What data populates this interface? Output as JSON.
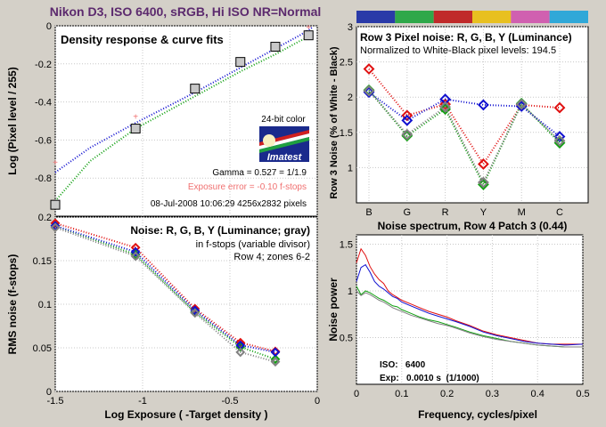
{
  "main_title": "Nikon D3, ISO 6400, sRGB, Hi ISO NR=Normal",
  "colors": {
    "title": "#5c2a6e",
    "background": "#d4d0c8",
    "plot_bg": "#ffffff",
    "grid": "#c8c8c8",
    "red": "#e01010",
    "green": "#10a010",
    "blue": "#1010d0",
    "gray": "#808080",
    "exposure_error": "#f07070",
    "patch_strip": [
      "#2a3aa8",
      "#2fa84a",
      "#c02a2a",
      "#e8c020",
      "#d060b0",
      "#30a8d8"
    ]
  },
  "chart_data": [
    {
      "id": "density",
      "type": "scatter",
      "title": "Density response & curve fits",
      "ylabel": "Log (Pixel level / 255)",
      "xlim": [
        -1.5,
        0
      ],
      "ylim": [
        -1.0,
        0
      ],
      "xticks": [],
      "yticks": [
        {
          "v": 0,
          "label": "0"
        },
        {
          "v": -0.2,
          "label": "-0.2"
        },
        {
          "v": -0.4,
          "label": "-0.4"
        },
        {
          "v": -0.6,
          "label": "-0.6"
        },
        {
          "v": -0.8,
          "label": "-0.8"
        }
      ],
      "points": [
        {
          "x": -1.5,
          "y": -0.94
        },
        {
          "x": -1.04,
          "y": -0.54
        },
        {
          "x": -0.7,
          "y": -0.33
        },
        {
          "x": -0.44,
          "y": -0.19
        },
        {
          "x": -0.24,
          "y": -0.11
        },
        {
          "x": -0.05,
          "y": -0.05
        }
      ],
      "ref_points": [
        {
          "x": -1.5,
          "y": -0.72
        },
        {
          "x": -1.04,
          "y": -0.48
        },
        {
          "x": -0.05,
          "y": -0.01
        }
      ],
      "blue_fit": {
        "x": [
          -1.5,
          -1.3,
          -1.04,
          -0.7,
          -0.44,
          -0.24,
          -0.1,
          -0.03
        ],
        "y": [
          -0.77,
          -0.64,
          -0.51,
          -0.35,
          -0.22,
          -0.12,
          -0.05,
          -0.01
        ]
      },
      "green_fit": {
        "x": [
          -1.5,
          -1.3,
          -1.04,
          -0.7,
          -0.44,
          -0.24,
          -0.1,
          -0.03
        ],
        "y": [
          -0.92,
          -0.71,
          -0.54,
          -0.37,
          -0.24,
          -0.15,
          -0.08,
          -0.05
        ]
      },
      "annotations": {
        "color_badge": "24-bit color",
        "logo": "Imatest",
        "gamma": "Gamma = 0.527 = 1/1.9",
        "exposure_error": "Exposure error = -0.10 f-stops",
        "date_info": "08-Jul-2008 10:06:29   4256x2832 pixels"
      }
    },
    {
      "id": "rms_noise",
      "type": "line",
      "title": "Noise: R, G, B, Y (Luminance; gray)",
      "subtitle1": "in f-stops (variable divisor)",
      "subtitle2": "Row 4; zones 6-2",
      "xlabel": "Log Exposure ( -Target density )",
      "ylabel": "RMS noise (f-stops)",
      "xlim": [
        -1.5,
        0
      ],
      "ylim": [
        0,
        0.2
      ],
      "xticks": [
        {
          "v": -1.5,
          "label": "-1.5"
        },
        {
          "v": -1,
          "label": "-1"
        },
        {
          "v": -0.5,
          "label": "-0.5"
        },
        {
          "v": 0,
          "label": "0"
        }
      ],
      "yticks": [
        {
          "v": 0,
          "label": "0"
        },
        {
          "v": 0.05,
          "label": "0.05"
        },
        {
          "v": 0.1,
          "label": "0.1"
        },
        {
          "v": 0.15,
          "label": "0.15"
        },
        {
          "v": 0.2,
          "label": "0.2"
        }
      ],
      "x": [
        -1.5,
        -1.04,
        -0.7,
        -0.44,
        -0.24
      ],
      "series": [
        {
          "name": "R",
          "color": "#e01010",
          "values": [
            0.193,
            0.165,
            0.095,
            0.056,
            0.046
          ]
        },
        {
          "name": "G",
          "color": "#10a010",
          "values": [
            0.19,
            0.157,
            0.091,
            0.051,
            0.037
          ]
        },
        {
          "name": "B",
          "color": "#1010d0",
          "values": [
            0.19,
            0.16,
            0.093,
            0.053,
            0.045
          ]
        },
        {
          "name": "Y",
          "color": "#808080",
          "values": [
            0.188,
            0.155,
            0.09,
            0.045,
            0.034
          ]
        }
      ]
    },
    {
      "id": "row3_noise",
      "type": "line",
      "title": "Row 3 Pixel noise: R, G, B, Y (Luminance)",
      "subtitle": "Normalized to White-Black pixel levels: 194.5",
      "ylabel": "Row 3 Noise (% of White - Black)",
      "categories": [
        "B",
        "G",
        "R",
        "Y",
        "M",
        "C"
      ],
      "ylim": [
        0.5,
        3.0
      ],
      "yticks": [
        {
          "v": 1,
          "label": "1"
        },
        {
          "v": 1.5,
          "label": "1.5"
        },
        {
          "v": 2,
          "label": "2"
        },
        {
          "v": 2.5,
          "label": "2.5"
        },
        {
          "v": 3,
          "label": "3"
        }
      ],
      "series": [
        {
          "name": "R",
          "color": "#e01010",
          "values": [
            2.4,
            1.74,
            1.9,
            1.05,
            1.89,
            1.85
          ]
        },
        {
          "name": "G",
          "color": "#10a010",
          "values": [
            2.1,
            1.45,
            1.83,
            0.76,
            1.91,
            1.35
          ]
        },
        {
          "name": "B",
          "color": "#1010d0",
          "values": [
            2.07,
            1.67,
            1.97,
            1.89,
            1.87,
            1.44
          ]
        },
        {
          "name": "Y",
          "color": "#808080",
          "values": [
            2.09,
            1.47,
            1.86,
            0.79,
            1.9,
            1.38
          ]
        }
      ]
    },
    {
      "id": "spectrum",
      "type": "line",
      "title": "Noise spectrum, Row 4 Patch 3 (0.44)",
      "xlabel": "Frequency, cycles/pixel",
      "ylabel": "Noise power",
      "xlim": [
        0,
        0.5
      ],
      "ylim": [
        0,
        1.6
      ],
      "xticks": [
        {
          "v": 0,
          "label": "0"
        },
        {
          "v": 0.1,
          "label": "0.1"
        },
        {
          "v": 0.2,
          "label": "0.2"
        },
        {
          "v": 0.3,
          "label": "0.3"
        },
        {
          "v": 0.4,
          "label": "0.4"
        },
        {
          "v": 0.5,
          "label": "0.5"
        }
      ],
      "yticks": [
        {
          "v": 0.5,
          "label": "0.5"
        },
        {
          "v": 1,
          "label": "1"
        },
        {
          "v": 1.5,
          "label": "1.5"
        }
      ],
      "x": [
        0.0,
        0.01,
        0.02,
        0.03,
        0.04,
        0.05,
        0.06,
        0.07,
        0.08,
        0.09,
        0.1,
        0.12,
        0.14,
        0.16,
        0.18,
        0.2,
        0.22,
        0.25,
        0.28,
        0.31,
        0.34,
        0.37,
        0.4,
        0.43,
        0.46,
        0.5
      ],
      "series": [
        {
          "name": "R",
          "color": "#e01010",
          "values": [
            1.3,
            1.45,
            1.38,
            1.26,
            1.18,
            1.12,
            1.08,
            1.0,
            0.96,
            0.93,
            0.9,
            0.86,
            0.82,
            0.78,
            0.75,
            0.72,
            0.68,
            0.63,
            0.57,
            0.53,
            0.5,
            0.47,
            0.44,
            0.43,
            0.43,
            0.43
          ]
        },
        {
          "name": "B",
          "color": "#1010d0",
          "values": [
            1.1,
            1.25,
            1.28,
            1.2,
            1.1,
            1.05,
            1.02,
            0.98,
            0.94,
            0.92,
            0.88,
            0.84,
            0.8,
            0.76,
            0.73,
            0.7,
            0.67,
            0.62,
            0.56,
            0.52,
            0.49,
            0.46,
            0.44,
            0.43,
            0.42,
            0.43
          ]
        },
        {
          "name": "G",
          "color": "#10a010",
          "values": [
            1.05,
            0.96,
            1.0,
            0.98,
            0.95,
            0.92,
            0.9,
            0.87,
            0.84,
            0.83,
            0.8,
            0.76,
            0.72,
            0.69,
            0.67,
            0.64,
            0.61,
            0.56,
            0.52,
            0.49,
            0.46,
            0.44,
            0.42,
            0.41,
            0.4,
            0.4
          ]
        },
        {
          "name": "Y",
          "color": "#808080",
          "values": [
            1.0,
            0.95,
            0.98,
            0.96,
            0.93,
            0.9,
            0.88,
            0.85,
            0.82,
            0.8,
            0.78,
            0.74,
            0.71,
            0.68,
            0.65,
            0.63,
            0.6,
            0.55,
            0.51,
            0.48,
            0.46,
            0.44,
            0.42,
            0.41,
            0.4,
            0.4
          ]
        }
      ],
      "info": {
        "iso": "ISO:   6400",
        "exp": "Exp:   0.0010 s  (1/1000)"
      }
    }
  ]
}
